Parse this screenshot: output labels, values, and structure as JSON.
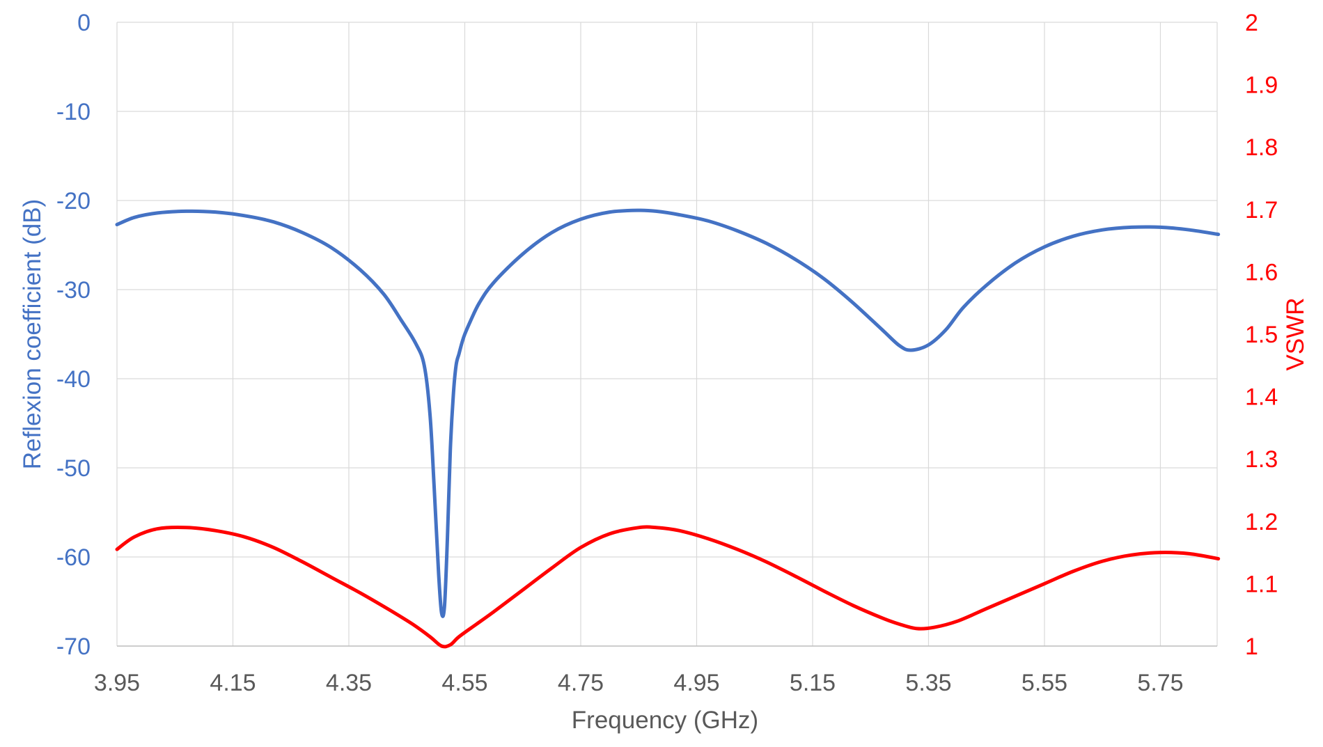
{
  "chart_data": {
    "type": "line",
    "xlabel": "Frequency (GHz)",
    "ylabel_left": "Reflexion coefficient (dB)",
    "ylabel_right": "VSWR",
    "xlim": [
      3.95,
      5.85
    ],
    "ylim_left": [
      -70,
      0
    ],
    "ylim_right": [
      1,
      2
    ],
    "x_ticks": [
      "3.95",
      "4.15",
      "4.35",
      "4.55",
      "4.75",
      "4.95",
      "5.15",
      "5.35",
      "5.55",
      "5.75"
    ],
    "y_ticks_left": [
      "0",
      "-10",
      "-20",
      "-30",
      "-40",
      "-50",
      "-60",
      "-70"
    ],
    "y_ticks_right": [
      "2",
      "1.9",
      "1.8",
      "1.7",
      "1.6",
      "1.5",
      "1.4",
      "1.3",
      "1.2",
      "1.1",
      "1"
    ],
    "grid": true,
    "colors": {
      "left_axis": "#4472c4",
      "right_axis": "#ff0000",
      "grid": "#d9d9d9",
      "x_axis_text": "#595959"
    },
    "series": [
      {
        "axis": "left",
        "color": "#4472c4",
        "x": [
          3.95,
          3.98,
          4.02,
          4.07,
          4.12,
          4.17,
          4.22,
          4.27,
          4.32,
          4.37,
          4.41,
          4.44,
          4.465,
          4.48,
          4.49,
          4.497,
          4.505,
          4.51,
          4.515,
          4.52,
          4.525,
          4.53,
          4.535,
          4.54,
          4.545,
          4.55,
          4.56,
          4.575,
          4.6,
          4.65,
          4.7,
          4.75,
          4.8,
          4.85,
          4.88,
          4.92,
          4.97,
          5.02,
          5.07,
          5.12,
          5.17,
          5.22,
          5.27,
          5.3,
          5.32,
          5.35,
          5.38,
          5.41,
          5.45,
          5.5,
          5.55,
          5.6,
          5.65,
          5.7,
          5.75,
          5.8,
          5.85
        ],
        "values": [
          -22.7,
          -21.9,
          -21.4,
          -21.2,
          -21.3,
          -21.7,
          -22.4,
          -23.6,
          -25.3,
          -27.8,
          -30.5,
          -33.4,
          -36.0,
          -38.5,
          -44.0,
          -52.0,
          -62.0,
          -66.3,
          -65.5,
          -58.0,
          -48.0,
          -42.0,
          -38.5,
          -37.2,
          -36.0,
          -35.0,
          -33.5,
          -31.5,
          -29.2,
          -26.0,
          -23.6,
          -22.1,
          -21.3,
          -21.1,
          -21.2,
          -21.6,
          -22.3,
          -23.4,
          -24.8,
          -26.6,
          -28.8,
          -31.5,
          -34.5,
          -36.3,
          -36.8,
          -36.2,
          -34.5,
          -32.0,
          -29.5,
          -27.0,
          -25.2,
          -24.0,
          -23.3,
          -23.0,
          -23.0,
          -23.3,
          -23.8
        ]
      },
      {
        "axis": "right",
        "color": "#ff0000",
        "x": [
          3.95,
          3.98,
          4.02,
          4.07,
          4.12,
          4.17,
          4.22,
          4.27,
          4.32,
          4.37,
          4.42,
          4.46,
          4.49,
          4.51,
          4.525,
          4.54,
          4.57,
          4.6,
          4.65,
          4.7,
          4.75,
          4.8,
          4.85,
          4.88,
          4.92,
          4.97,
          5.02,
          5.07,
          5.12,
          5.17,
          5.22,
          5.27,
          5.3,
          5.33,
          5.36,
          5.4,
          5.45,
          5.5,
          5.55,
          5.6,
          5.65,
          5.7,
          5.75,
          5.8,
          5.85
        ],
        "values": [
          1.155,
          1.175,
          1.188,
          1.19,
          1.185,
          1.175,
          1.158,
          1.135,
          1.11,
          1.085,
          1.058,
          1.035,
          1.015,
          1.0,
          1.002,
          1.015,
          1.035,
          1.055,
          1.09,
          1.125,
          1.158,
          1.18,
          1.19,
          1.19,
          1.185,
          1.172,
          1.155,
          1.135,
          1.112,
          1.088,
          1.065,
          1.045,
          1.035,
          1.028,
          1.03,
          1.04,
          1.06,
          1.08,
          1.1,
          1.12,
          1.136,
          1.146,
          1.15,
          1.148,
          1.14
        ]
      }
    ]
  }
}
